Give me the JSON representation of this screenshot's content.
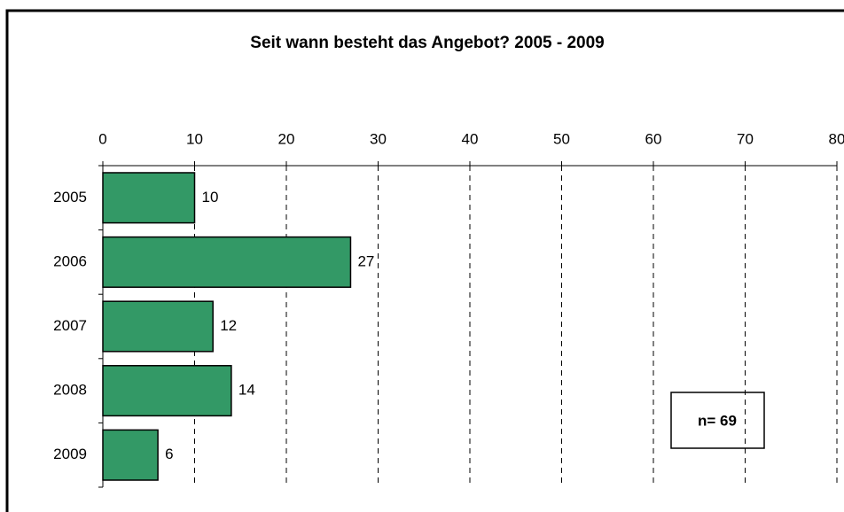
{
  "chart_data": {
    "type": "bar",
    "orientation": "horizontal",
    "title": "Seit wann besteht das Angebot? 2005 - 2009",
    "categories": [
      "2005",
      "2006",
      "2007",
      "2008",
      "2009"
    ],
    "values": [
      10,
      27,
      12,
      14,
      6
    ],
    "color": "#339966",
    "xlim": [
      0,
      80
    ],
    "xticks": [
      0,
      10,
      20,
      30,
      40,
      50,
      60,
      70,
      80
    ],
    "grid": true,
    "annotation": "n= 69"
  }
}
